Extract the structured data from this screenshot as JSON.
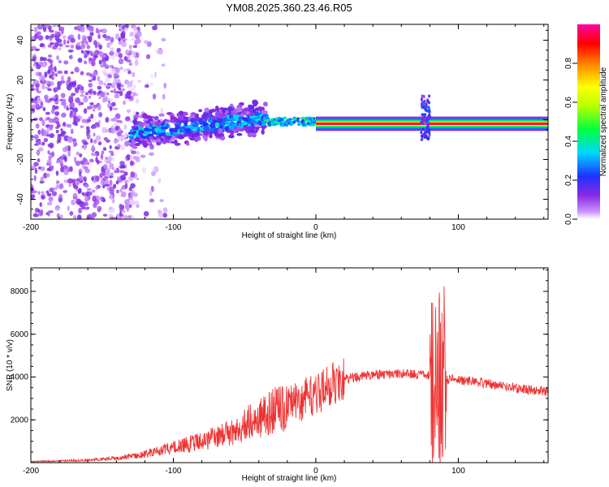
{
  "figure_title": "YM08.2025.360.23.46.R05",
  "chart_data": [
    {
      "type": "heatmap",
      "title": "YM08.2025.360.23.46.R05",
      "xlabel": "Height of straight line (km)",
      "ylabel": "Frequency (Hz)",
      "xlim": [
        -200,
        163
      ],
      "ylim": [
        -50,
        48
      ],
      "x_ticks": [
        -200,
        -100,
        0,
        100
      ],
      "x_tick_labels": [
        "-200",
        "-100",
        "0",
        "100"
      ],
      "y_ticks": [
        -40,
        -20,
        0,
        20,
        40
      ],
      "y_tick_labels": [
        "-40",
        "-20",
        "0",
        "20",
        "40"
      ],
      "colorbar": {
        "label": "Normalized spectral amplitude",
        "range": [
          0,
          1
        ],
        "ticks": [
          0.0,
          0.2,
          0.4,
          0.6,
          0.8
        ],
        "tick_labels": [
          "0.0",
          "0.2",
          "0.4",
          "0.6",
          "0.8"
        ],
        "colormap": "rainbow (white-violet-blue-cyan-green-yellow-red-magenta)"
      },
      "regions": [
        {
          "name": "noise-scatter",
          "x_range": [
            -200,
            -125
          ],
          "freq_range": [
            -50,
            48
          ],
          "amplitude": 0.1
        },
        {
          "name": "rising-signal",
          "x_range": [
            -130,
            -35
          ],
          "freq_slope_hz_per_km": 0.08,
          "amplitude": 0.3
        },
        {
          "name": "strong-line",
          "x_range": [
            0,
            163
          ],
          "freq_center": -2,
          "amplitude": 0.95
        }
      ]
    },
    {
      "type": "line",
      "xlabel": "Height of straight line (km)",
      "ylabel": "SNR (10 * v/v)",
      "xlim": [
        -200,
        163
      ],
      "ylim": [
        0,
        9100
      ],
      "x_ticks": [
        -200,
        -100,
        0,
        100
      ],
      "x_tick_labels": [
        "-200",
        "-100",
        "0",
        "100"
      ],
      "y_ticks": [
        2000,
        4000,
        6000,
        8000
      ],
      "y_tick_labels": [
        "2000",
        "4000",
        "6000",
        "8000"
      ],
      "series": [
        {
          "name": "SNR",
          "color": "#ee3333",
          "x": [
            -200,
            -180,
            -160,
            -140,
            -120,
            -100,
            -80,
            -60,
            -50,
            -40,
            -30,
            -20,
            -10,
            0,
            10,
            20,
            30,
            40,
            50,
            60,
            70,
            75,
            80,
            85,
            87,
            90,
            95,
            100,
            110,
            120,
            130,
            140,
            150,
            163
          ],
          "y": [
            50,
            80,
            120,
            200,
            400,
            700,
            1000,
            1400,
            1800,
            2100,
            2400,
            2600,
            2900,
            3200,
            3600,
            3900,
            4000,
            4100,
            4150,
            4150,
            4150,
            4100,
            4050,
            3900,
            3900,
            3900,
            3900,
            3850,
            3800,
            3700,
            3600,
            3500,
            3400,
            3300
          ]
        }
      ]
    }
  ]
}
